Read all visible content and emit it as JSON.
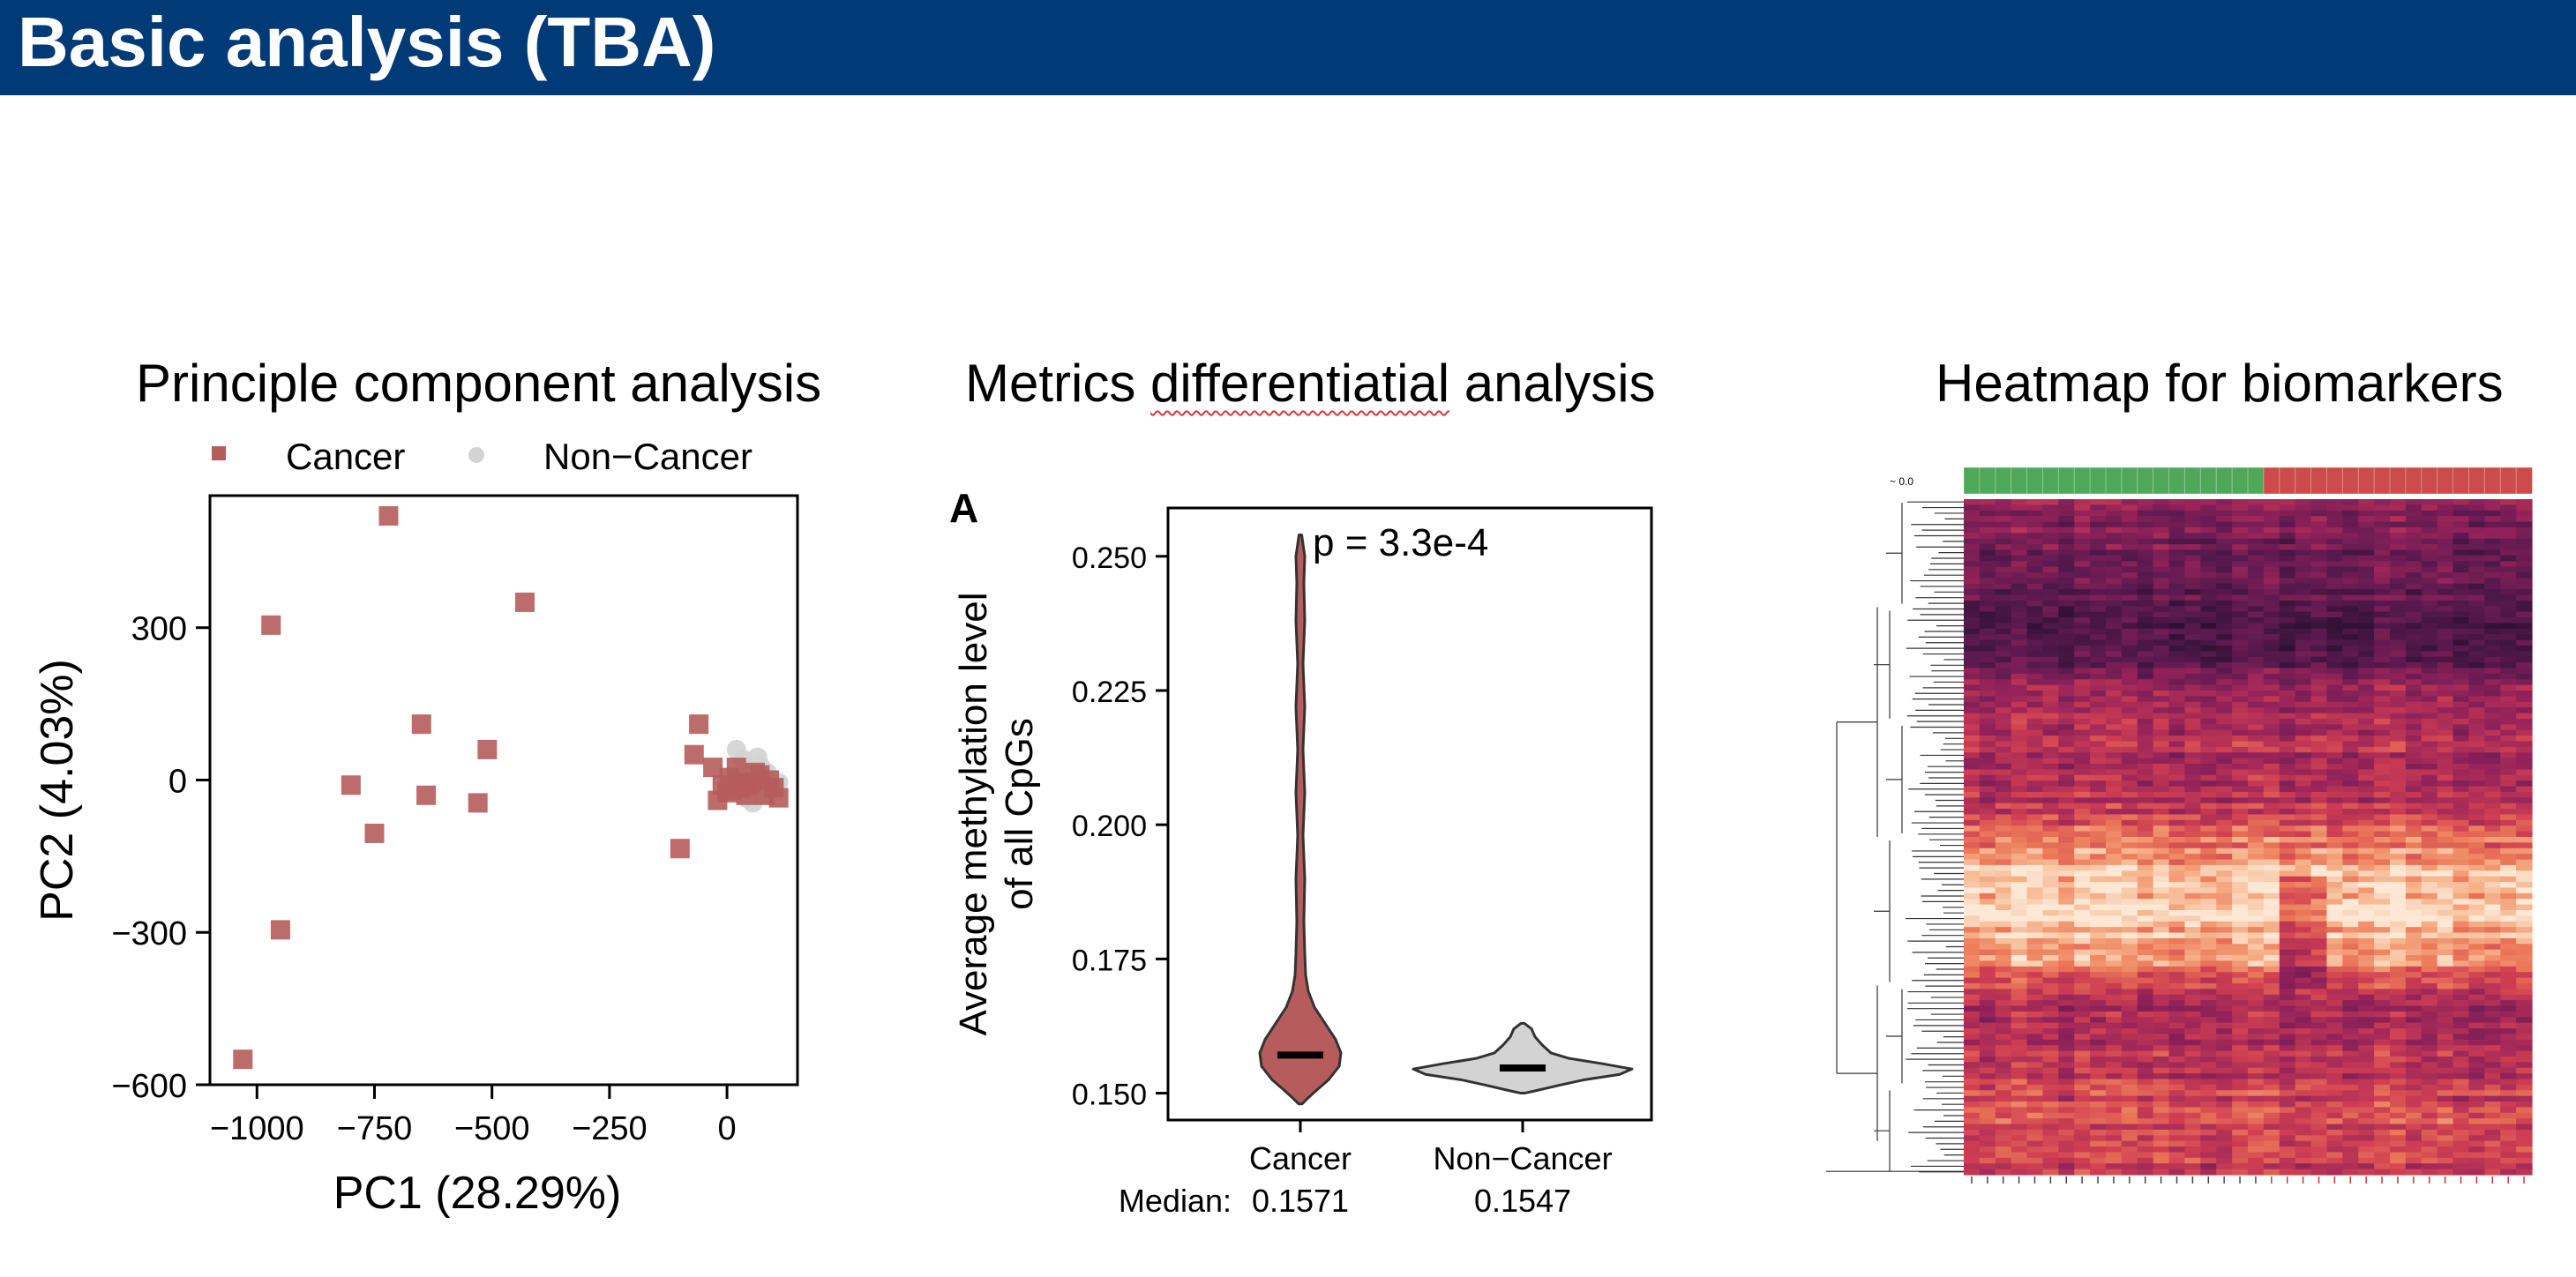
{
  "slide": {
    "title": "Basic analysis (TBA)"
  },
  "panels": {
    "pca": {
      "title": "Principle component analysis"
    },
    "violin": {
      "title_before": "Metrics ",
      "title_misspelled": "differentiatial",
      "title_after": " analysis"
    },
    "heatmap": {
      "title": "Heatmap for biomarkers"
    }
  },
  "colors": {
    "header": "#003B78",
    "cancer": "#B65C5C",
    "non_cancer": "#D3D3D3",
    "heat_green": "#4FA85A",
    "heat_red": "#CC4B4B"
  },
  "chart_data": [
    {
      "type": "scatter",
      "xlabel": "PC1 (28.29%)",
      "ylabel": "PC2 (4.03%)",
      "xlim": [
        -1100,
        150
      ],
      "ylim": [
        -600,
        560
      ],
      "xticks": [
        -1000,
        -750,
        -500,
        -250,
        0
      ],
      "xtick_labels": [
        "−1000",
        "−750",
        "−500",
        "−250",
        "0"
      ],
      "yticks": [
        -600,
        -300,
        0,
        300
      ],
      "ytick_labels": [
        "−600",
        "−300",
        "0",
        "300"
      ],
      "legend": [
        "Cancer",
        "Non−Cancer"
      ],
      "legend_position": "top",
      "series": [
        {
          "name": "Cancer",
          "marker": "square",
          "x": [
            -720,
            -970,
            -430,
            -650,
            -510,
            -800,
            -750,
            -640,
            -530,
            -950,
            -1030,
            -60,
            -70,
            -30,
            -100,
            20,
            -10,
            30,
            60,
            90,
            10,
            0,
            -20,
            50,
            80,
            110,
            40,
            70,
            100,
            30,
            5,
            45
          ],
          "y": [
            520,
            305,
            350,
            110,
            60,
            -10,
            -105,
            -30,
            -45,
            -295,
            -550,
            110,
            50,
            25,
            -135,
            25,
            -10,
            -15,
            15,
            0,
            -20,
            -25,
            -40,
            -5,
            -30,
            -35,
            -30,
            10,
            -15,
            -5,
            5,
            -10
          ]
        },
        {
          "name": "Non−Cancer",
          "marker": "circle",
          "x": [
            20,
            50,
            80,
            60,
            40,
            90,
            70,
            100,
            30,
            55,
            75,
            85,
            65,
            45,
            95,
            110,
            35,
            60,
            80,
            50
          ],
          "y": [
            60,
            20,
            10,
            -15,
            -35,
            0,
            30,
            -10,
            5,
            -45,
            -25,
            15,
            45,
            25,
            -20,
            -5,
            40,
            0,
            -30,
            10
          ]
        }
      ]
    },
    {
      "type": "violin",
      "panel_label": "A",
      "ylabel_line1": "Average methylation level",
      "ylabel_line2": "of all CpGs",
      "ylim": [
        0.145,
        0.259
      ],
      "yticks": [
        0.15,
        0.175,
        0.2,
        0.225,
        0.25
      ],
      "ytick_labels": [
        "0.150",
        "0.175",
        "0.200",
        "0.225",
        "0.250"
      ],
      "categories": [
        "Cancer",
        "Non−Cancer"
      ],
      "medians": [
        0.1571,
        0.1547
      ],
      "median_prefix": "Median:",
      "median_labels": [
        "0.1571",
        "0.1547"
      ],
      "annotation": "p = 3.3e-4",
      "ranges": [
        [
          0.148,
          0.254
        ],
        [
          0.15,
          0.163
        ]
      ]
    },
    {
      "type": "heatmap",
      "column_groups": [
        "Cancer",
        "Non−Cancer"
      ],
      "scale_label": "~ 0.0"
    }
  ]
}
